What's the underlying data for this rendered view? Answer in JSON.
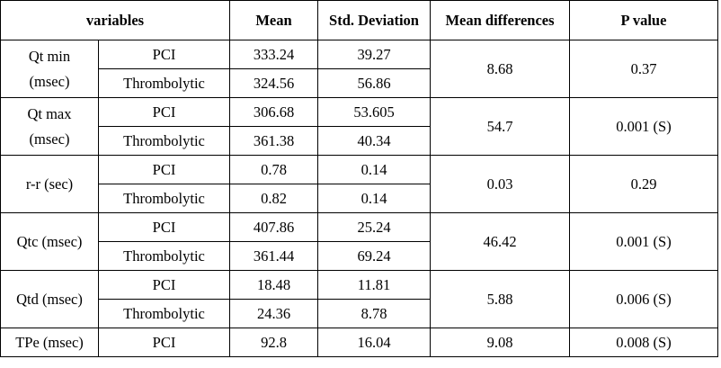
{
  "headers": {
    "variables": "variables",
    "mean": "Mean",
    "std": "Std. Deviation",
    "mean_diff": "Mean differences",
    "p_value": "P value"
  },
  "rows": [
    {
      "variable_line1": "Qt min",
      "variable_line2": "(msec)",
      "groups": [
        {
          "group": "PCI",
          "mean": "333.24",
          "std": "39.27"
        },
        {
          "group": "Thrombolytic",
          "mean": "324.56",
          "std": "56.86"
        }
      ],
      "mean_diff": "8.68",
      "p_value": "0.37"
    },
    {
      "variable_line1": "Qt max",
      "variable_line2": "(msec)",
      "groups": [
        {
          "group": "PCI",
          "mean": "306.68",
          "std": "53.605"
        },
        {
          "group": "Thrombolytic",
          "mean": "361.38",
          "std": "40.34"
        }
      ],
      "mean_diff": "54.7",
      "p_value": "0.001 (S)"
    },
    {
      "variable_line1": "r-r (sec)",
      "variable_line2": "",
      "groups": [
        {
          "group": "PCI",
          "mean": "0.78",
          "std": "0.14"
        },
        {
          "group": "Thrombolytic",
          "mean": "0.82",
          "std": "0.14"
        }
      ],
      "mean_diff": "0.03",
      "p_value": "0.29"
    },
    {
      "variable_line1": "Qtc (msec)",
      "variable_line2": "",
      "groups": [
        {
          "group": "PCI",
          "mean": "407.86",
          "std": "25.24"
        },
        {
          "group": "Thrombolytic",
          "mean": "361.44",
          "std": "69.24"
        }
      ],
      "mean_diff": "46.42",
      "p_value": "0.001 (S)"
    },
    {
      "variable_line1": "Qtd (msec)",
      "variable_line2": "",
      "groups": [
        {
          "group": "PCI",
          "mean": "18.48",
          "std": "11.81"
        },
        {
          "group": "Thrombolytic",
          "mean": "24.36",
          "std": "8.78"
        }
      ],
      "mean_diff": "5.88",
      "p_value": "0.006 (S)"
    },
    {
      "variable_line1": "TPe (msec)",
      "variable_line2": "",
      "groups": [
        {
          "group": "PCI",
          "mean": "92.8",
          "std": "16.04"
        }
      ],
      "mean_diff": "9.08",
      "p_value": "0.008 (S)"
    }
  ]
}
